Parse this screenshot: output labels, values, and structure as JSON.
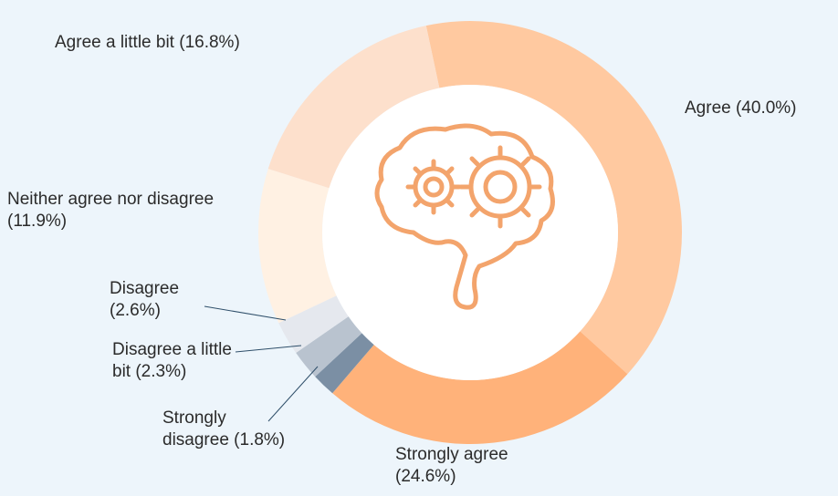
{
  "chart_data": {
    "type": "donut",
    "categories": [
      "Agree",
      "Strongly agree",
      "Strongly disagree",
      "Disagree a little bit",
      "Disagree",
      "Neither agree nor disagree",
      "Agree a little bit"
    ],
    "values": [
      40.0,
      24.6,
      1.8,
      2.3,
      2.6,
      11.9,
      16.8
    ],
    "value_labels": [
      "(40.0%)",
      "(24.6%)",
      "(1.8%)",
      "(2.3%)",
      "(2.6%)",
      "(11.9%)",
      "(16.8%)"
    ],
    "colors": [
      "#ffc9a0",
      "#ffb27a",
      "#7b8fa4",
      "#b9c3cf",
      "#e5e8ee",
      "#fff1e3",
      "#fde0cc"
    ]
  }
}
